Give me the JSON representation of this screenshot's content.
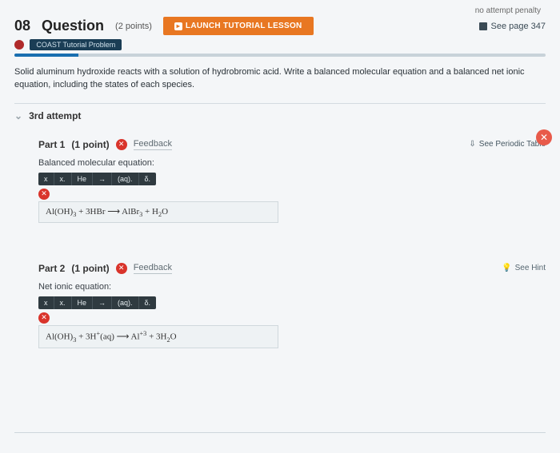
{
  "topstrip": "no attempt penalty",
  "header": {
    "qnum": "08",
    "qword": "Question",
    "points": "(2 points)",
    "launch_label": "LAUNCH TUTORIAL LESSON",
    "seepage": "See page 347"
  },
  "coast_label": "COAST Tutorial Problem",
  "progress_pct": 12,
  "prompt": "Solid aluminum hydroxide reacts with a solution of hydrobromic acid. Write a balanced molecular equation and a balanced net ionic equation, including the states of each species.",
  "attempt_label": "3rd attempt",
  "periodic_link": "See Periodic Table",
  "hint_link": "See Hint",
  "toolbar": {
    "b1": "x",
    "b2": "x.",
    "b3": "He",
    "b4": "→",
    "b5": "(aq).",
    "b6": "δ."
  },
  "part1": {
    "title": "Part 1",
    "pts": "(1 point)",
    "feedback": "Feedback",
    "sub_label": "Balanced molecular equation:",
    "equation_html": "Al(OH)<sub>3</sub> + 3HBr &longrightarrow; AlBr<sub>3</sub> + H<sub>2</sub>O"
  },
  "part2": {
    "title": "Part 2",
    "pts": "(1 point)",
    "feedback": "Feedback",
    "sub_label": "Net ionic equation:",
    "equation_html": "Al(OH)<sub>3</sub> + 3H<sup>+</sup>(aq) &longrightarrow; Al<sup>+3</sup> + 3H<sub>2</sub>O"
  },
  "footer": {
    "left": "",
    "center": ""
  }
}
